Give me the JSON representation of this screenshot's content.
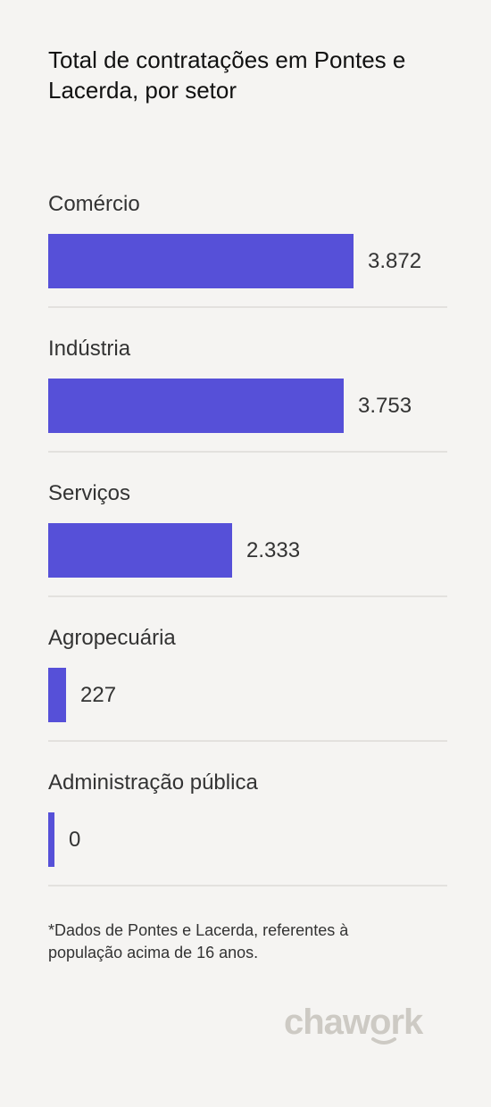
{
  "title": "Total de contratações em Pontes e Lacerda, por setor",
  "footnote": "*Dados de Pontes e Lacerda, referentes à população acima de 16 anos.",
  "logo_text": "chawork",
  "colors": {
    "background": "#f5f4f2",
    "bar": "#5650d8",
    "divider": "#e3e1de",
    "logo": "#cdcac4"
  },
  "chart_data": {
    "type": "bar",
    "orientation": "horizontal",
    "title": "Total de contratações em Pontes e Lacerda, por setor",
    "categories": [
      "Comércio",
      "Indústria",
      "Serviços",
      "Agropecuária",
      "Administração pública"
    ],
    "values": [
      3872,
      3753,
      2333,
      227,
      0
    ],
    "value_labels": [
      "3.872",
      "3.753",
      "2.333",
      "227",
      "0"
    ],
    "xlim": [
      0,
      3872
    ],
    "grid": false,
    "legend": "none"
  }
}
